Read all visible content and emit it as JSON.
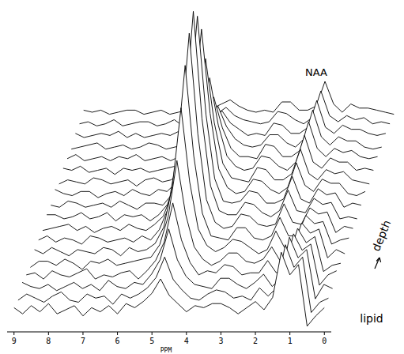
{
  "chart_data": {
    "type": "waterfall",
    "x_label": "PPM",
    "color": "#000000",
    "annotations": [
      "NAA",
      "lipid",
      "depth"
    ],
    "xlim": [
      9.2,
      -0.2
    ],
    "xticks": [
      9,
      8,
      7,
      6,
      5,
      4,
      3,
      2,
      1,
      0
    ],
    "ylim": [
      -10,
      110
    ],
    "tick_labels": "x",
    "x": [
      9,
      8.75,
      8.5,
      8.25,
      8,
      7.75,
      7.5,
      7.25,
      7,
      6.75,
      6.5,
      6.25,
      6,
      5.75,
      5.5,
      5.25,
      5,
      4.75,
      4.5,
      4.25,
      4,
      3.75,
      3.5,
      3.25,
      3,
      2.75,
      2.5,
      2.25,
      2,
      1.75,
      1.5,
      1.25,
      1,
      0.75,
      0.5,
      0.25,
      0
    ],
    "series": [
      {
        "values": [
          1,
          -2,
          2,
          -1,
          3,
          -2,
          0,
          2,
          -3,
          1,
          -1,
          2,
          -2,
          3,
          1,
          4,
          8,
          15,
          7,
          3,
          -1,
          2,
          1,
          3,
          3,
          1,
          -2,
          1,
          4,
          0,
          6,
          28,
          17,
          22,
          -8,
          -3,
          1
        ]
      },
      {
        "values": [
          -1,
          2,
          0,
          -2,
          1,
          3,
          -1,
          -2,
          2,
          0,
          1,
          -3,
          2,
          0,
          2,
          5,
          10,
          20,
          9,
          4,
          0,
          -1,
          2,
          4,
          3,
          0,
          1,
          -1,
          5,
          1,
          5,
          26,
          15,
          20,
          -7,
          -2,
          0
        ]
      },
      {
        "values": [
          2,
          0,
          -1,
          1,
          -2,
          0,
          2,
          -1,
          1,
          -2,
          3,
          0,
          -1,
          2,
          1,
          6,
          13,
          28,
          13,
          5,
          1,
          0,
          -1,
          4,
          4,
          1,
          -1,
          2,
          6,
          0,
          4,
          24,
          14,
          18,
          -6,
          1,
          -1
        ]
      },
      {
        "values": [
          0,
          1,
          -2,
          2,
          0,
          -1,
          1,
          3,
          -2,
          0,
          -1,
          1,
          2,
          -2,
          2,
          7,
          16,
          35,
          17,
          6,
          0,
          2,
          1,
          5,
          4,
          0,
          1,
          1,
          7,
          1,
          3,
          20,
          12,
          15,
          -5,
          0,
          2
        ]
      },
      {
        "values": [
          -2,
          1,
          1,
          -1,
          2,
          0,
          -3,
          1,
          0,
          2,
          -1,
          0,
          1,
          2,
          3,
          9,
          23,
          50,
          24,
          8,
          2,
          -1,
          1,
          5,
          5,
          1,
          0,
          2,
          8,
          1,
          3,
          17,
          10,
          13,
          -4,
          -1,
          0
        ]
      },
      {
        "values": [
          1,
          -1,
          2,
          0,
          -2,
          1,
          0,
          -1,
          2,
          1,
          -2,
          2,
          0,
          1,
          4,
          12,
          32,
          70,
          34,
          11,
          3,
          0,
          2,
          6,
          5,
          2,
          -1,
          1,
          10,
          2,
          2,
          14,
          9,
          11,
          -3,
          1,
          -1
        ]
      },
      {
        "values": [
          0,
          2,
          -1,
          1,
          0,
          -2,
          2,
          1,
          -1,
          0,
          1,
          -1,
          2,
          0,
          5,
          15,
          40,
          85,
          41,
          13,
          2,
          1,
          0,
          6,
          6,
          1,
          0,
          2,
          11,
          2,
          2,
          12,
          8,
          9,
          -2,
          0,
          1
        ]
      },
      {
        "values": [
          -1,
          0,
          1,
          2,
          -1,
          1,
          -2,
          0,
          1,
          -1,
          2,
          0,
          -1,
          2,
          6,
          17,
          45,
          95,
          46,
          14,
          3,
          0,
          1,
          7,
          6,
          2,
          1,
          2,
          12,
          3,
          2,
          10,
          7,
          8,
          -2,
          1,
          0
        ]
      },
      {
        "values": [
          1,
          1,
          -1,
          0,
          2,
          -1,
          0,
          2,
          -2,
          1,
          0,
          1,
          -2,
          1,
          6,
          18,
          47,
          100,
          48,
          15,
          3,
          1,
          1,
          7,
          6,
          2,
          0,
          3,
          13,
          3,
          2,
          9,
          6,
          7,
          -1,
          0,
          -1
        ]
      },
      {
        "values": [
          0,
          -1,
          2,
          1,
          -1,
          0,
          1,
          -1,
          2,
          0,
          -2,
          1,
          1,
          0,
          5,
          16,
          43,
          92,
          44,
          13,
          2,
          1,
          2,
          7,
          6,
          1,
          1,
          3,
          14,
          3,
          1,
          8,
          5,
          6,
          -1,
          1,
          0
        ]
      },
      {
        "values": [
          2,
          0,
          -1,
          1,
          1,
          -2,
          0,
          1,
          -1,
          2,
          0,
          -1,
          2,
          1,
          5,
          14,
          38,
          80,
          39,
          12,
          3,
          0,
          1,
          7,
          6,
          2,
          0,
          3,
          15,
          4,
          1,
          7,
          5,
          5,
          0,
          -1,
          1
        ]
      },
      {
        "values": [
          -1,
          1,
          0,
          -1,
          2,
          1,
          -1,
          0,
          1,
          -2,
          1,
          2,
          0,
          1,
          4,
          11,
          29,
          60,
          29,
          9,
          2,
          1,
          0,
          7,
          6,
          1,
          1,
          4,
          16,
          4,
          1,
          6,
          4,
          5,
          1,
          0,
          -1
        ]
      },
      {
        "values": [
          1,
          0,
          2,
          -1,
          0,
          1,
          -2,
          1,
          0,
          1,
          -1,
          0,
          1,
          2,
          3,
          9,
          22,
          45,
          22,
          7,
          2,
          0,
          1,
          7,
          6,
          2,
          0,
          4,
          17,
          4,
          1,
          6,
          4,
          4,
          0,
          1,
          0
        ]
      },
      {
        "values": [
          0,
          2,
          -1,
          0,
          1,
          -1,
          1,
          0,
          2,
          -1,
          0,
          1,
          -1,
          1,
          2,
          7,
          15,
          30,
          15,
          5,
          1,
          1,
          0,
          7,
          6,
          1,
          1,
          4,
          18,
          5,
          1,
          5,
          3,
          4,
          1,
          0,
          1
        ]
      },
      {
        "values": [
          -1,
          0,
          1,
          2,
          -1,
          0,
          1,
          -1,
          0,
          2,
          1,
          -1,
          0,
          1,
          2,
          5,
          10,
          20,
          10,
          4,
          1,
          0,
          1,
          6,
          6,
          2,
          0,
          4,
          18,
          5,
          1,
          5,
          3,
          3,
          0,
          -1,
          0
        ]
      },
      {
        "values": [
          1,
          -1,
          0,
          1,
          0,
          2,
          -1,
          1,
          -1,
          0,
          1,
          0,
          2,
          -1,
          1,
          4,
          7,
          12,
          6,
          3,
          0,
          1,
          0,
          6,
          5,
          1,
          1,
          4,
          17,
          4,
          1,
          5,
          3,
          3,
          1,
          0,
          1
        ]
      },
      {
        "values": [
          0,
          1,
          -1,
          0,
          2,
          -1,
          0,
          1,
          1,
          -1,
          0,
          2,
          -1,
          0,
          1,
          3,
          5,
          8,
          4,
          2,
          1,
          0,
          1,
          6,
          5,
          2,
          0,
          3,
          16,
          4,
          1,
          4,
          2,
          3,
          0,
          1,
          0
        ]
      },
      {
        "values": [
          1,
          0,
          1,
          -1,
          0,
          1,
          1,
          -1,
          0,
          1,
          -1,
          0,
          1,
          1,
          0,
          2,
          4,
          6,
          3,
          1,
          0,
          1,
          0,
          5,
          5,
          1,
          1,
          3,
          15,
          4,
          0,
          4,
          2,
          2,
          1,
          0,
          -1
        ]
      }
    ]
  }
}
